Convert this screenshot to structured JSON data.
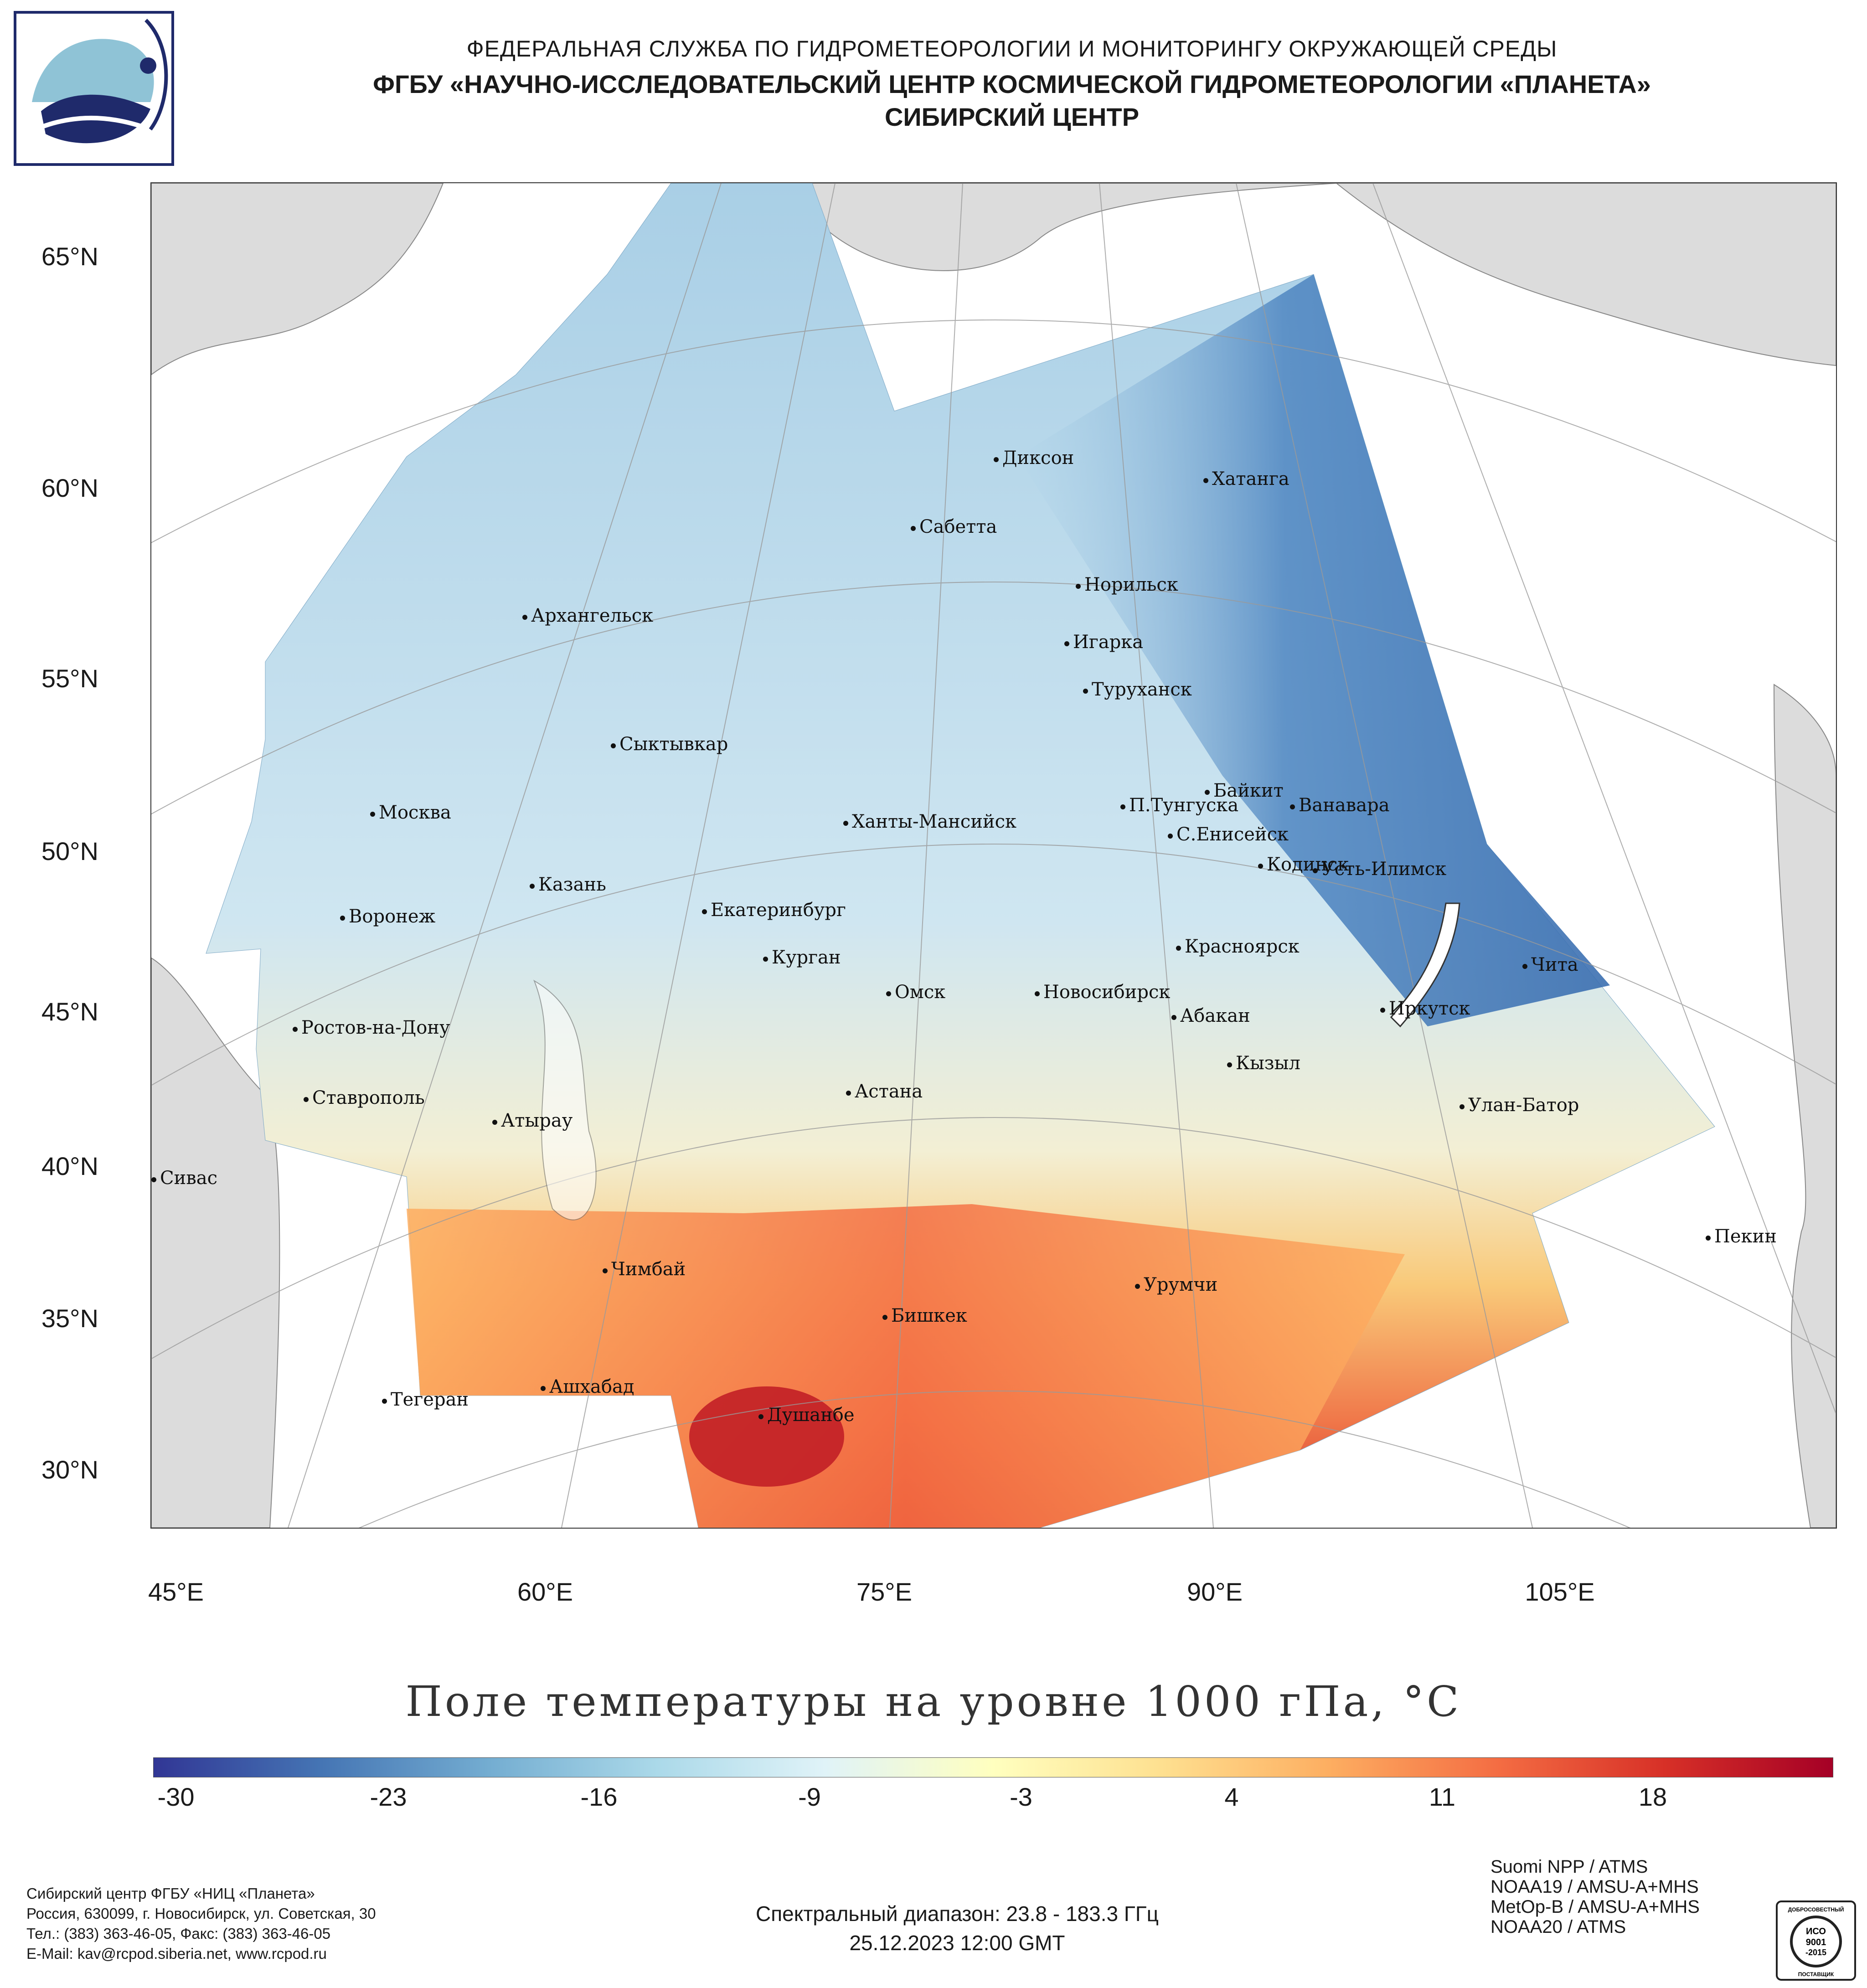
{
  "header": {
    "line1": "ФЕДЕРАЛЬНАЯ СЛУЖБА ПО ГИДРОМЕТЕОРОЛОГИИ И МОНИТОРИНГУ ОКРУЖАЮЩЕЙ СРЕДЫ",
    "line2": "ФГБУ «НАУЧНО-ИССЛЕДОВАТЕЛЬСКИЙ ЦЕНТР КОСМИЧЕСКОЙ ГИДРОМЕТЕОРОЛОГИИ «ПЛАНЕТА»",
    "line3": "СИБИРСКИЙ ЦЕНТР"
  },
  "map": {
    "lat_labels": [
      "65°N",
      "60°N",
      "55°N",
      "50°N",
      "45°N",
      "40°N",
      "35°N",
      "30°N"
    ],
    "lon_labels": [
      "45°E",
      "60°E",
      "75°E",
      "90°E",
      "105°E"
    ],
    "cities": [
      {
        "name": "Диксон"
      },
      {
        "name": "Хатанга"
      },
      {
        "name": "Сабетта"
      },
      {
        "name": "Норильск"
      },
      {
        "name": "Архангельск"
      },
      {
        "name": "Игарка"
      },
      {
        "name": "Туруханск"
      },
      {
        "name": "Сыктывкар"
      },
      {
        "name": "Байкит"
      },
      {
        "name": "Москва"
      },
      {
        "name": "Ханты-Мансийск"
      },
      {
        "name": "П.Тунгуска"
      },
      {
        "name": "Ванавара"
      },
      {
        "name": "С.Енисейск"
      },
      {
        "name": "Казань"
      },
      {
        "name": "Кодинск"
      },
      {
        "name": "Усть-Илимск"
      },
      {
        "name": "Воронеж"
      },
      {
        "name": "Екатеринбург"
      },
      {
        "name": "Красноярск"
      },
      {
        "name": "Курган"
      },
      {
        "name": "Чита"
      },
      {
        "name": "Омск"
      },
      {
        "name": "Новосибирск"
      },
      {
        "name": "Иркутск"
      },
      {
        "name": "Ростов-на-Дону"
      },
      {
        "name": "Абакан"
      },
      {
        "name": "Кызыл"
      },
      {
        "name": "Астана"
      },
      {
        "name": "Ставрополь"
      },
      {
        "name": "Улан-Батор"
      },
      {
        "name": "Атырау"
      },
      {
        "name": "Сивас"
      },
      {
        "name": "Пекин"
      },
      {
        "name": "Чимбай"
      },
      {
        "name": "Урумчи"
      },
      {
        "name": "Бишкек"
      },
      {
        "name": "Ашхабад"
      },
      {
        "name": "Тегеран"
      },
      {
        "name": "Душанбе"
      }
    ]
  },
  "title": "Поле температуры на уровне 1000 гПа, °С",
  "colorbar": {
    "ticks": [
      "-30",
      "-23",
      "-16",
      "-9",
      "-3",
      "4",
      "11",
      "18"
    ],
    "colors": [
      "#313695",
      "#4575b4",
      "#74add1",
      "#abd9e9",
      "#e0f3f8",
      "#ffffbf",
      "#fee090",
      "#fdae61",
      "#f46d43",
      "#d73027",
      "#a50026"
    ]
  },
  "footer": {
    "org": "Сибирский центр ФГБУ «НИЦ «Планета»",
    "address": "Россия, 630099, г. Новосибирск, ул. Советская, 30",
    "phone": "Тел.: (383) 363-46-05, Факс: (383) 363-46-05",
    "email": "E-Mail: kav@rcpod.siberia.net, www.rcpod.ru",
    "spectral": "Спектральный диапазон: 23.8 - 183.3 ГГц",
    "datetime": "25.12.2023 12:00 GMT",
    "satellites": [
      "Suomi NPP / ATMS",
      "NOAA19 / AMSU-A+MHS",
      "MetOp-B / AMSU-A+MHS",
      "NOAA20 / ATMS"
    ]
  },
  "cert": {
    "top": "ДОБРОСОВЕСТНЫЙ",
    "l1": "ИСО",
    "l2": "9001",
    "l3": "-2015",
    "bottom": "ПОСТАВЩИК"
  }
}
